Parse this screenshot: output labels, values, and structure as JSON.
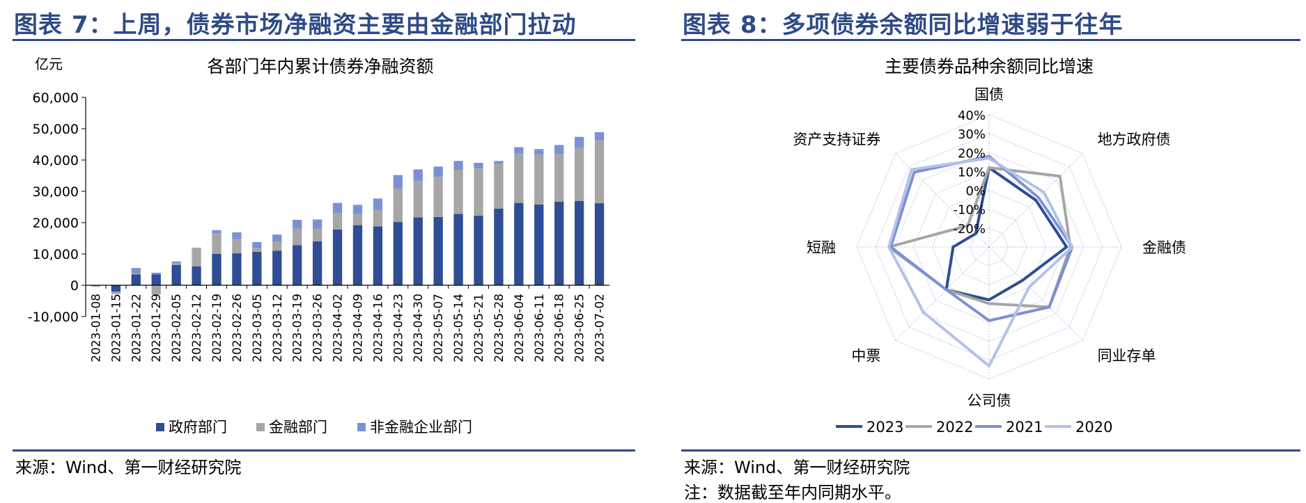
{
  "left": {
    "fig_title": "图表 7：上周，债券市场净融资主要由金融部门拉动",
    "source": "来源：Wind、第一财经研究院",
    "chart_data": {
      "type": "bar",
      "stacked": true,
      "title": "各部门年内累计债券净融资额",
      "ylabel": "亿元",
      "ylim": [
        -10000,
        60000
      ],
      "yticks": [
        -10000,
        0,
        10000,
        20000,
        30000,
        40000,
        50000,
        60000
      ],
      "ytick_labels": [
        "-10,000",
        "0",
        "10,000",
        "20,000",
        "30,000",
        "40,000",
        "50,000",
        "60,000"
      ],
      "legend_position": "bottom",
      "colors": [
        "#2e4d94",
        "#a6a6a6",
        "#7b91d6"
      ],
      "categories": [
        "2023-01-08",
        "2023-01-15",
        "2023-01-22",
        "2023-01-29",
        "2023-02-05",
        "2023-02-12",
        "2023-02-19",
        "2023-02-26",
        "2023-03-05",
        "2023-03-12",
        "2023-03-19",
        "2023-03-26",
        "2023-04-02",
        "2023-04-09",
        "2023-04-16",
        "2023-04-23",
        "2023-04-30",
        "2023-05-07",
        "2023-05-14",
        "2023-05-21",
        "2023-05-28",
        "2023-06-04",
        "2023-06-11",
        "2023-06-18",
        "2023-06-25",
        "2023-07-02"
      ],
      "series": [
        {
          "name": "政府部门",
          "values": [
            0,
            -2000,
            3500,
            3500,
            6500,
            6000,
            10000,
            10200,
            10700,
            11000,
            12800,
            14000,
            17800,
            19200,
            18800,
            20200,
            21700,
            21800,
            22800,
            22200,
            24500,
            26300,
            25800,
            26700,
            26900,
            26200
          ]
        },
        {
          "name": "金融部门",
          "values": [
            -500,
            -800,
            500,
            -3000,
            600,
            6000,
            6600,
            4500,
            1300,
            3000,
            5300,
            4000,
            5300,
            3500,
            5300,
            10700,
            11600,
            12800,
            14100,
            15100,
            14200,
            15800,
            15900,
            15300,
            17000,
            20000
          ]
        },
        {
          "name": "非金融企业部门",
          "values": [
            0,
            0,
            1500,
            500,
            500,
            0,
            1000,
            2200,
            1800,
            2200,
            2800,
            3000,
            3200,
            3000,
            3600,
            4300,
            3700,
            3300,
            2800,
            1800,
            1000,
            2000,
            1800,
            2800,
            3500,
            2700
          ]
        }
      ]
    }
  },
  "right": {
    "fig_title": "图表 8：多项债券余额同比增速弱于往年",
    "source": "来源：Wind、第一财经研究院",
    "note": "注：数据截至年内同期水平。",
    "chart_data": {
      "type": "radar",
      "title": "主要债券品种余额同比增速",
      "axes": [
        "国债",
        "地方政府债",
        "金融债",
        "同业存单",
        "公司债",
        "中票",
        "短融",
        "资产支持证券"
      ],
      "rlim": [
        -30,
        40
      ],
      "rticks": [
        -20,
        -10,
        0,
        10,
        20,
        30,
        40
      ],
      "rtick_labels": [
        "-20%",
        "-10%",
        "0%",
        "10%",
        "20%",
        "30%",
        "40%"
      ],
      "legend_position": "bottom",
      "series": [
        {
          "name": "2023",
          "color": "#2e4d94",
          "values": [
            12,
            5,
            11,
            -5,
            -2,
            2,
            -11,
            -20
          ]
        },
        {
          "name": "2022",
          "color": "#a6a6a6",
          "values": [
            12,
            23,
            13,
            15,
            0,
            2,
            23,
            -14
          ]
        },
        {
          "name": "2021",
          "color": "#7b91d6",
          "values": [
            18,
            7,
            14,
            15,
            9,
            2,
            22,
            26
          ]
        },
        {
          "name": "2020",
          "color": "#b4c1e6",
          "values": [
            17,
            11,
            14,
            0,
            33,
            19,
            23,
            28
          ]
        }
      ]
    }
  }
}
